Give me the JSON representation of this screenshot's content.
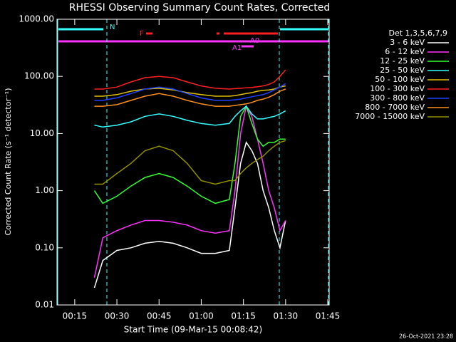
{
  "chart_data": {
    "type": "line",
    "title": "RHESSI Observing Summary Count Rates, Corrected",
    "x_label": "Start Time (09-Mar-15 00:08:42)",
    "y_label": "Corrected Count Rate (s⁻¹ detector⁻¹)",
    "legend_title": "Det 1,3,5,6,7,9",
    "footer": "26-Oct-2021 23:28",
    "annotations": [
      "N",
      "F",
      "A1",
      "A0"
    ],
    "log_y": true,
    "xlim": [
      8.7,
      105.5
    ],
    "xticks": [
      {
        "value": 15,
        "label": "00:15"
      },
      {
        "value": 30,
        "label": "00:30"
      },
      {
        "value": 45,
        "label": "00:45"
      },
      {
        "value": 60,
        "label": "01:00"
      },
      {
        "value": 75,
        "label": "01:15"
      },
      {
        "value": 90,
        "label": "01:30"
      },
      {
        "value": 105,
        "label": "01:45"
      }
    ],
    "ylim": [
      0.01,
      1000
    ],
    "yticks": [
      {
        "value": 1000,
        "label": "1000.00"
      },
      {
        "value": 100,
        "label": "100.00"
      },
      {
        "value": 10,
        "label": "10.00"
      },
      {
        "value": 1,
        "label": "1.00"
      },
      {
        "value": 0.1,
        "label": "0.10"
      },
      {
        "value": 0.01,
        "label": "0.01"
      }
    ],
    "x": [
      22,
      25,
      30,
      35,
      40,
      45,
      50,
      55,
      60,
      65,
      70,
      72,
      74,
      76,
      78,
      80,
      82,
      84,
      86,
      88,
      90
    ],
    "series": [
      {
        "name": "3 - 6 keV",
        "color": "#ffffff",
        "values": [
          0.02,
          0.06,
          0.09,
          0.1,
          0.12,
          0.13,
          0.12,
          0.1,
          0.08,
          0.08,
          0.09,
          0.5,
          3,
          7,
          5,
          3,
          1,
          0.5,
          0.2,
          0.1,
          0.3
        ]
      },
      {
        "name": "6 - 12 keV",
        "color": "#ff33ff",
        "values": [
          0.03,
          0.15,
          0.2,
          0.25,
          0.3,
          0.3,
          0.28,
          0.25,
          0.2,
          0.18,
          0.2,
          1,
          10,
          30,
          20,
          8,
          3,
          1,
          0.5,
          0.2,
          0.3
        ]
      },
      {
        "name": "12 - 25 keV",
        "color": "#33ff33",
        "values": [
          1.0,
          0.6,
          0.8,
          1.2,
          1.7,
          2.0,
          1.7,
          1.2,
          0.8,
          0.6,
          0.7,
          3,
          20,
          30,
          15,
          8,
          6,
          7,
          7,
          8,
          8
        ]
      },
      {
        "name": "25 - 50 keV",
        "color": "#33ffff",
        "values": [
          14,
          13,
          14,
          16,
          20,
          22,
          20,
          17,
          15,
          14,
          15,
          20,
          25,
          30,
          22,
          18,
          18,
          19,
          20,
          22,
          25
        ]
      },
      {
        "name": "50 - 100 keV",
        "color": "#e0c000",
        "values": [
          45,
          45,
          48,
          55,
          60,
          62,
          58,
          52,
          48,
          45,
          45,
          46,
          48,
          50,
          52,
          55,
          57,
          58,
          60,
          65,
          68
        ]
      },
      {
        "name": "100 - 300 keV",
        "color": "#ff2020",
        "values": [
          60,
          60,
          65,
          80,
          95,
          100,
          95,
          80,
          68,
          62,
          60,
          61,
          62,
          63,
          64,
          66,
          68,
          72,
          80,
          100,
          130
        ]
      },
      {
        "name": "300 - 800 keV",
        "color": "#2040ff",
        "values": [
          38,
          38,
          42,
          50,
          60,
          65,
          60,
          50,
          42,
          38,
          38,
          39,
          40,
          42,
          44,
          46,
          48,
          52,
          58,
          65,
          75
        ]
      },
      {
        "name": "800 - 7000 keV",
        "color": "#ff9020",
        "values": [
          30,
          30,
          32,
          38,
          45,
          50,
          45,
          38,
          33,
          30,
          30,
          31,
          32,
          33,
          35,
          38,
          40,
          43,
          48,
          55,
          60
        ]
      },
      {
        "name": "7000 - 15000 keV",
        "color": "#909000",
        "values": [
          1.3,
          1.3,
          2,
          3,
          5,
          6,
          5,
          3,
          1.5,
          1.3,
          1.5,
          1.5,
          2,
          2.5,
          3,
          3.5,
          4,
          5,
          6,
          7,
          7.5
        ]
      }
    ]
  }
}
